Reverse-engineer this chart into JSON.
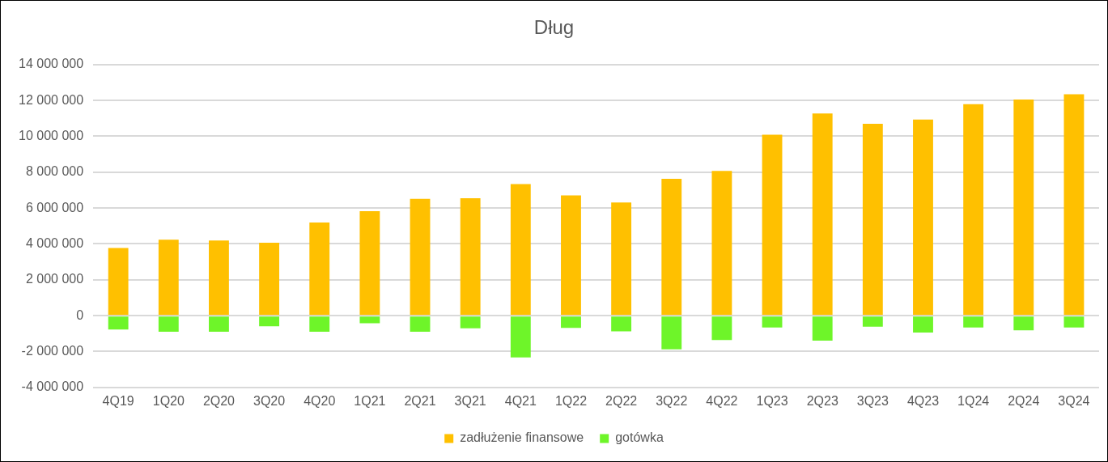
{
  "chart_data": {
    "type": "bar",
    "title": "Dług",
    "stacked": true,
    "categories": [
      "4Q19",
      "1Q20",
      "2Q20",
      "3Q20",
      "4Q20",
      "1Q21",
      "2Q21",
      "3Q21",
      "4Q21",
      "1Q22",
      "2Q22",
      "3Q22",
      "4Q22",
      "1Q23",
      "2Q23",
      "3Q23",
      "4Q23",
      "1Q24",
      "2Q24",
      "3Q24"
    ],
    "series": [
      {
        "name": "zadłużenie finansowe",
        "color": "#ffc000",
        "values": [
          3770000,
          4240000,
          4190000,
          4070000,
          5190000,
          5830000,
          6510000,
          6550000,
          7340000,
          6710000,
          6310000,
          7630000,
          8070000,
          10090000,
          11270000,
          10700000,
          10930000,
          11790000,
          12050000,
          12350000
        ]
      },
      {
        "name": "gotówka",
        "color": "#6ef529",
        "values": [
          -770000,
          -900000,
          -900000,
          -590000,
          -900000,
          -420000,
          -900000,
          -710000,
          -2330000,
          -680000,
          -870000,
          -1880000,
          -1360000,
          -660000,
          -1390000,
          -610000,
          -940000,
          -660000,
          -820000,
          -660000
        ]
      }
    ],
    "ylim": [
      -4000000,
      14000000
    ],
    "yticks": [
      {
        "value": -4000000,
        "label": "-4 000 000"
      },
      {
        "value": -2000000,
        "label": "-2 000 000"
      },
      {
        "value": 0,
        "label": "0"
      },
      {
        "value": 2000000,
        "label": "2 000 000"
      },
      {
        "value": 4000000,
        "label": "4 000 000"
      },
      {
        "value": 6000000,
        "label": "6 000 000"
      },
      {
        "value": 8000000,
        "label": "8 000 000"
      },
      {
        "value": 10000000,
        "label": "10 000 000"
      },
      {
        "value": 12000000,
        "label": "12 000 000"
      },
      {
        "value": 14000000,
        "label": "14 000 000"
      }
    ],
    "grid": "y",
    "legend": "bottom"
  }
}
